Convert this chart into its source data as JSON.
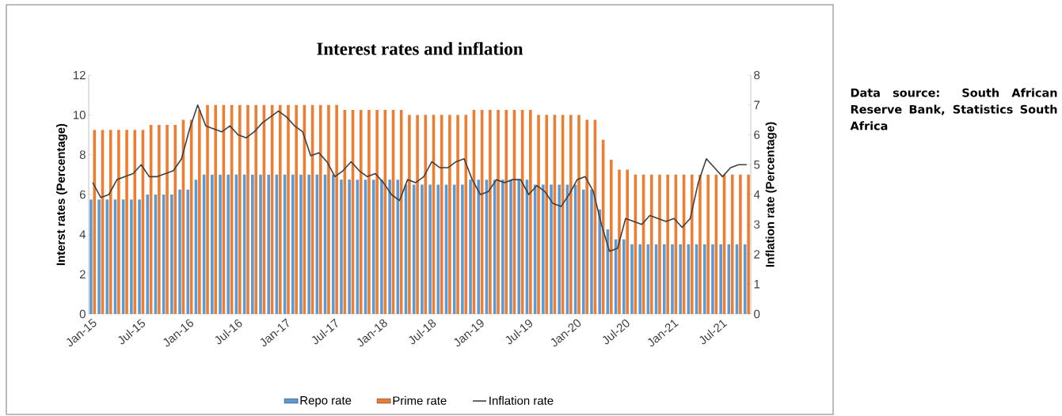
{
  "chart_data": {
    "type": "bar",
    "title": "Interest rates and inflation",
    "ylabel": "Interst rates (Percentage)",
    "y2label": "Inflation rate (Percentage)",
    "categories": [
      "Jan-15",
      null,
      null,
      null,
      null,
      null,
      "Jul-15",
      null,
      null,
      null,
      null,
      null,
      "Jan-16",
      null,
      null,
      null,
      null,
      null,
      "Jul-16",
      null,
      null,
      null,
      null,
      null,
      "Jan-17",
      null,
      null,
      null,
      null,
      null,
      "Jul-17",
      null,
      null,
      null,
      null,
      null,
      "Jan-18",
      null,
      null,
      null,
      null,
      null,
      "Jul-18",
      null,
      null,
      null,
      null,
      null,
      "Jan-19",
      null,
      null,
      null,
      null,
      null,
      "Jul-19",
      null,
      null,
      null,
      null,
      null,
      "Jan-20",
      null,
      null,
      null,
      null,
      null,
      "Jul-20",
      null,
      null,
      null,
      null,
      null,
      "Jan-21",
      null,
      null,
      null,
      null,
      null,
      "Jul-21",
      null,
      null,
      null
    ],
    "series": [
      {
        "name": "Repo rate",
        "color": "#5b9bd5",
        "values": [
          5.75,
          5.75,
          5.75,
          5.75,
          5.75,
          5.75,
          5.75,
          6,
          6,
          6,
          6,
          6.25,
          6.25,
          6.75,
          7,
          7,
          7,
          7,
          7,
          7,
          7,
          7,
          7,
          7,
          7,
          7,
          7,
          7,
          7,
          7,
          7,
          6.75,
          6.75,
          6.75,
          6.75,
          6.75,
          6.75,
          6.75,
          6.75,
          6.5,
          6.5,
          6.5,
          6.5,
          6.5,
          6.5,
          6.5,
          6.5,
          6.75,
          6.75,
          6.75,
          6.75,
          6.75,
          6.75,
          6.75,
          6.75,
          6.5,
          6.5,
          6.5,
          6.5,
          6.5,
          6.5,
          6.25,
          6.25,
          5.25,
          4.25,
          3.75,
          3.75,
          3.5,
          3.5,
          3.5,
          3.5,
          3.5,
          3.5,
          3.5,
          3.5,
          3.5,
          3.5,
          3.5,
          3.5,
          3.5,
          3.5,
          3.5
        ]
      },
      {
        "name": "Prime rate",
        "color": "#ed7d31",
        "values": [
          9.25,
          9.25,
          9.25,
          9.25,
          9.25,
          9.25,
          9.25,
          9.5,
          9.5,
          9.5,
          9.5,
          9.75,
          9.75,
          10.25,
          10.5,
          10.5,
          10.5,
          10.5,
          10.5,
          10.5,
          10.5,
          10.5,
          10.5,
          10.5,
          10.5,
          10.5,
          10.5,
          10.5,
          10.5,
          10.5,
          10.5,
          10.25,
          10.25,
          10.25,
          10.25,
          10.25,
          10.25,
          10.25,
          10.25,
          10,
          10,
          10,
          10,
          10,
          10,
          10,
          10,
          10.25,
          10.25,
          10.25,
          10.25,
          10.25,
          10.25,
          10.25,
          10.25,
          10,
          10,
          10,
          10,
          10,
          10,
          9.75,
          9.75,
          8.75,
          7.75,
          7.25,
          7.25,
          7,
          7,
          7,
          7,
          7,
          7,
          7,
          7,
          7,
          7,
          7,
          7,
          7,
          7,
          7
        ]
      },
      {
        "name": "Inflation rate",
        "type": "line",
        "axis": "y2",
        "color": "#404040",
        "values": [
          4.4,
          3.9,
          4.0,
          4.5,
          4.6,
          4.7,
          5.0,
          4.6,
          4.6,
          4.7,
          4.8,
          5.2,
          6.2,
          7.0,
          6.3,
          6.2,
          6.1,
          6.3,
          6.0,
          5.9,
          6.1,
          6.4,
          6.6,
          6.8,
          6.6,
          6.3,
          6.1,
          5.3,
          5.4,
          5.1,
          4.6,
          4.8,
          5.1,
          4.8,
          4.6,
          4.7,
          4.4,
          4.0,
          3.8,
          4.5,
          4.4,
          4.6,
          5.1,
          4.9,
          4.9,
          5.1,
          5.2,
          4.5,
          4.0,
          4.1,
          4.5,
          4.4,
          4.5,
          4.5,
          4.0,
          4.3,
          4.1,
          3.7,
          3.6,
          4.0,
          4.5,
          4.6,
          4.1,
          3.0,
          2.1,
          2.2,
          3.2,
          3.1,
          3.0,
          3.3,
          3.2,
          3.1,
          3.2,
          2.9,
          3.2,
          4.4,
          5.2,
          4.9,
          4.6,
          4.9,
          5.0,
          5.0
        ]
      }
    ],
    "ylim": [
      0,
      12
    ],
    "yticks": [
      0,
      2,
      4,
      6,
      8,
      10,
      12
    ],
    "y2lim": [
      0,
      8
    ],
    "y2ticks": [
      0,
      1,
      2,
      3,
      4,
      5,
      6,
      7,
      8
    ],
    "legend": "bottom",
    "annotations": [
      "Data source: South African Reserve Bank, Statistics South Africa"
    ]
  }
}
